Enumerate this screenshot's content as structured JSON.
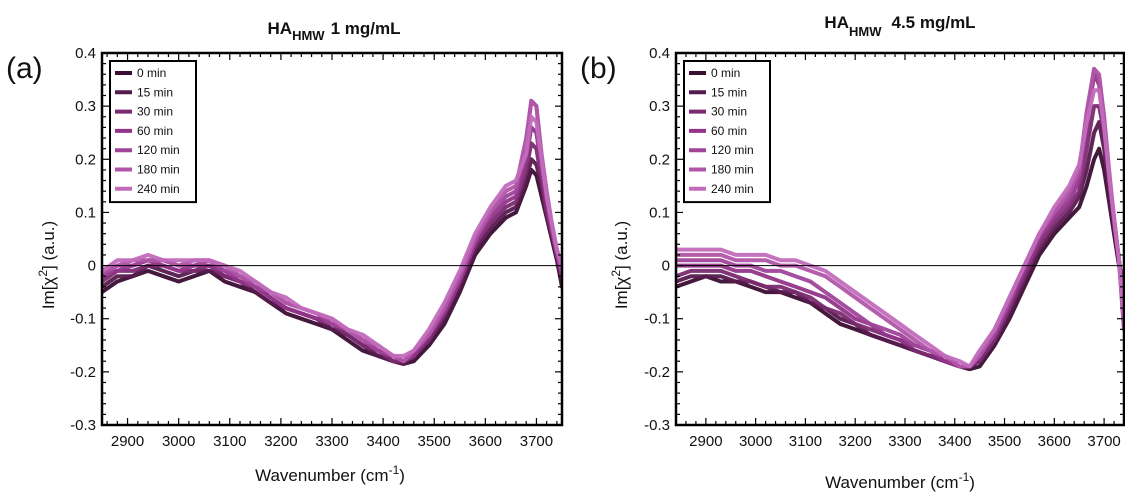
{
  "chart_data": [
    {
      "type": "line",
      "panel_label": "(a)",
      "title": {
        "main": "HA",
        "sub": "HMW",
        "rest": "1 mg/mL"
      },
      "xlabel": {
        "main": "Wavenumber (cm",
        "sup": "-1",
        "end": ")"
      },
      "ylabel": {
        "main": "Im[χ",
        "sup": "2",
        "end": "] (a.u.)"
      },
      "xlim": [
        2850,
        3750
      ],
      "ylim": [
        -0.3,
        0.4
      ],
      "xticks": [
        2900,
        3000,
        3100,
        3200,
        3300,
        3400,
        3500,
        3600,
        3700
      ],
      "yticks": [
        "-0.3",
        "-0.2",
        "-0.1",
        "0",
        "0.1",
        "0.2",
        "0.3",
        "0.4"
      ],
      "legend_position": "top-left",
      "zero_line": true,
      "x": [
        2850,
        2880,
        2910,
        2940,
        2970,
        3000,
        3030,
        3060,
        3090,
        3120,
        3150,
        3180,
        3210,
        3240,
        3270,
        3300,
        3330,
        3360,
        3390,
        3420,
        3440,
        3460,
        3490,
        3520,
        3550,
        3580,
        3610,
        3640,
        3660,
        3680,
        3690,
        3700,
        3710,
        3720,
        3730,
        3740,
        3750
      ],
      "series": [
        {
          "name": "0 min",
          "color": "#3b0d33",
          "values": [
            -0.05,
            -0.03,
            -0.02,
            -0.01,
            -0.02,
            -0.03,
            -0.02,
            -0.01,
            -0.03,
            -0.04,
            -0.05,
            -0.07,
            -0.09,
            -0.1,
            -0.11,
            -0.12,
            -0.14,
            -0.16,
            -0.17,
            -0.18,
            -0.185,
            -0.18,
            -0.15,
            -0.11,
            -0.05,
            0.02,
            0.06,
            0.09,
            0.1,
            0.15,
            0.18,
            0.17,
            0.13,
            0.09,
            0.05,
            0.01,
            -0.04
          ]
        },
        {
          "name": "15 min",
          "color": "#571a4e",
          "values": [
            -0.04,
            -0.02,
            -0.02,
            0.0,
            -0.01,
            -0.02,
            -0.01,
            -0.01,
            -0.02,
            -0.03,
            -0.05,
            -0.07,
            -0.08,
            -0.09,
            -0.1,
            -0.12,
            -0.13,
            -0.15,
            -0.17,
            -0.18,
            -0.185,
            -0.17,
            -0.14,
            -0.1,
            -0.04,
            0.03,
            0.07,
            0.1,
            0.11,
            0.16,
            0.2,
            0.19,
            0.15,
            0.1,
            0.06,
            0.02,
            -0.03
          ]
        },
        {
          "name": "30 min",
          "color": "#7b2a70",
          "values": [
            -0.03,
            -0.01,
            -0.01,
            0.0,
            0.0,
            -0.01,
            -0.01,
            0.0,
            -0.02,
            -0.03,
            -0.04,
            -0.06,
            -0.08,
            -0.09,
            -0.1,
            -0.11,
            -0.13,
            -0.15,
            -0.16,
            -0.18,
            -0.18,
            -0.17,
            -0.14,
            -0.09,
            -0.03,
            0.04,
            0.08,
            0.11,
            0.12,
            0.18,
            0.23,
            0.22,
            0.16,
            0.1,
            0.06,
            0.02,
            -0.02
          ]
        },
        {
          "name": "60 min",
          "color": "#92358a",
          "values": [
            -0.02,
            -0.01,
            0.0,
            0.01,
            0.0,
            -0.01,
            0.0,
            0.0,
            -0.01,
            -0.03,
            -0.04,
            -0.06,
            -0.08,
            -0.09,
            -0.1,
            -0.11,
            -0.12,
            -0.14,
            -0.16,
            -0.17,
            -0.18,
            -0.17,
            -0.13,
            -0.09,
            -0.03,
            0.04,
            0.09,
            0.12,
            0.13,
            0.2,
            0.26,
            0.25,
            0.18,
            0.12,
            0.07,
            0.02,
            -0.02
          ]
        },
        {
          "name": "120 min",
          "color": "#a0449a",
          "values": [
            -0.02,
            0.0,
            0.0,
            0.01,
            0.01,
            0.0,
            0.0,
            0.01,
            -0.01,
            -0.02,
            -0.04,
            -0.05,
            -0.07,
            -0.08,
            -0.09,
            -0.11,
            -0.12,
            -0.14,
            -0.16,
            -0.17,
            -0.18,
            -0.16,
            -0.13,
            -0.08,
            -0.02,
            0.05,
            0.1,
            0.13,
            0.14,
            0.23,
            0.31,
            0.3,
            0.2,
            0.13,
            0.07,
            0.03,
            -0.01
          ]
        },
        {
          "name": "180 min",
          "color": "#b055a8",
          "values": [
            -0.01,
            0.0,
            0.01,
            0.01,
            0.01,
            0.0,
            0.01,
            0.01,
            0.0,
            -0.02,
            -0.03,
            -0.05,
            -0.07,
            -0.08,
            -0.09,
            -0.1,
            -0.12,
            -0.14,
            -0.15,
            -0.17,
            -0.18,
            -0.16,
            -0.13,
            -0.08,
            -0.02,
            0.05,
            0.1,
            0.14,
            0.15,
            0.24,
            0.31,
            0.3,
            0.21,
            0.14,
            0.08,
            0.03,
            -0.01
          ]
        },
        {
          "name": "240 min",
          "color": "#c26bbc",
          "values": [
            -0.01,
            0.01,
            0.01,
            0.02,
            0.01,
            0.01,
            0.01,
            0.01,
            0.0,
            -0.01,
            -0.03,
            -0.05,
            -0.06,
            -0.08,
            -0.09,
            -0.1,
            -0.12,
            -0.13,
            -0.15,
            -0.17,
            -0.17,
            -0.16,
            -0.12,
            -0.07,
            -0.01,
            0.06,
            0.11,
            0.15,
            0.16,
            0.21,
            0.28,
            0.27,
            0.2,
            0.13,
            0.08,
            0.03,
            0.0
          ]
        }
      ]
    },
    {
      "type": "line",
      "panel_label": "(b)",
      "title": {
        "main": "HA",
        "sub": "HMW",
        "rest": "4.5 mg/mL"
      },
      "xlabel": {
        "main": "Wavenumber (cm",
        "sup": "-1",
        "end": ")"
      },
      "ylabel": {
        "main": "Im[χ",
        "sup": "2",
        "end": "] (a.u.)"
      },
      "xlim": [
        2840,
        3740
      ],
      "ylim": [
        -0.3,
        0.4
      ],
      "xticks": [
        2900,
        3000,
        3100,
        3200,
        3300,
        3400,
        3500,
        3600,
        3700
      ],
      "yticks": [
        "-0.3",
        "-0.2",
        "-0.1",
        "0",
        "0.1",
        "0.2",
        "0.3",
        "0.4"
      ],
      "legend_position": "top-left",
      "zero_line": true,
      "x": [
        2840,
        2870,
        2900,
        2930,
        2960,
        2990,
        3020,
        3050,
        3080,
        3110,
        3140,
        3170,
        3200,
        3230,
        3260,
        3290,
        3320,
        3350,
        3380,
        3410,
        3430,
        3450,
        3480,
        3510,
        3540,
        3570,
        3600,
        3630,
        3650,
        3665,
        3680,
        3690,
        3700,
        3710,
        3720,
        3730,
        3740
      ],
      "series": [
        {
          "name": "0 min",
          "color": "#3b0d33",
          "values": [
            -0.04,
            -0.03,
            -0.02,
            -0.03,
            -0.03,
            -0.04,
            -0.05,
            -0.05,
            -0.06,
            -0.07,
            -0.09,
            -0.11,
            -0.12,
            -0.13,
            -0.14,
            -0.15,
            -0.16,
            -0.17,
            -0.18,
            -0.19,
            -0.195,
            -0.19,
            -0.15,
            -0.1,
            -0.04,
            0.02,
            0.06,
            0.09,
            0.11,
            0.15,
            0.2,
            0.22,
            0.18,
            0.12,
            0.06,
            0.0,
            -0.05
          ]
        },
        {
          "name": "15 min",
          "color": "#571a4e",
          "values": [
            -0.03,
            -0.02,
            -0.02,
            -0.02,
            -0.03,
            -0.03,
            -0.04,
            -0.05,
            -0.05,
            -0.07,
            -0.08,
            -0.1,
            -0.11,
            -0.13,
            -0.14,
            -0.15,
            -0.16,
            -0.17,
            -0.18,
            -0.19,
            -0.19,
            -0.18,
            -0.14,
            -0.09,
            -0.03,
            0.03,
            0.07,
            0.1,
            0.13,
            0.18,
            0.25,
            0.27,
            0.22,
            0.14,
            0.07,
            0.01,
            -0.05
          ]
        },
        {
          "name": "30 min",
          "color": "#7b2a70",
          "values": [
            -0.02,
            -0.01,
            -0.01,
            -0.01,
            -0.02,
            -0.03,
            -0.04,
            -0.04,
            -0.05,
            -0.06,
            -0.08,
            -0.09,
            -0.11,
            -0.12,
            -0.13,
            -0.14,
            -0.16,
            -0.17,
            -0.18,
            -0.19,
            -0.19,
            -0.18,
            -0.14,
            -0.08,
            -0.02,
            0.04,
            0.08,
            0.11,
            0.14,
            0.22,
            0.3,
            0.3,
            0.25,
            0.16,
            0.08,
            0.01,
            -0.08
          ]
        },
        {
          "name": "60 min",
          "color": "#92358a",
          "values": [
            0.0,
            0.0,
            0.0,
            0.0,
            -0.01,
            -0.01,
            -0.02,
            -0.03,
            -0.04,
            -0.05,
            -0.06,
            -0.08,
            -0.1,
            -0.11,
            -0.13,
            -0.14,
            -0.15,
            -0.16,
            -0.18,
            -0.19,
            -0.19,
            -0.17,
            -0.13,
            -0.07,
            -0.01,
            0.05,
            0.09,
            0.12,
            0.16,
            0.26,
            0.36,
            0.34,
            0.27,
            0.17,
            0.09,
            0.01,
            -0.11
          ]
        },
        {
          "name": "120 min",
          "color": "#a0449a",
          "values": [
            0.01,
            0.01,
            0.01,
            0.01,
            0.0,
            0.0,
            -0.01,
            -0.01,
            -0.02,
            -0.03,
            -0.05,
            -0.07,
            -0.09,
            -0.11,
            -0.12,
            -0.13,
            -0.15,
            -0.16,
            -0.17,
            -0.19,
            -0.19,
            -0.17,
            -0.13,
            -0.07,
            0.0,
            0.06,
            0.1,
            0.13,
            0.17,
            0.28,
            0.37,
            0.35,
            0.28,
            0.17,
            0.09,
            0.01,
            -0.12
          ]
        },
        {
          "name": "180 min",
          "color": "#b055a8",
          "values": [
            0.02,
            0.02,
            0.02,
            0.02,
            0.01,
            0.01,
            0.01,
            0.0,
            0.0,
            -0.01,
            -0.02,
            -0.04,
            -0.06,
            -0.08,
            -0.1,
            -0.12,
            -0.14,
            -0.16,
            -0.17,
            -0.19,
            -0.19,
            -0.17,
            -0.12,
            -0.06,
            0.0,
            0.06,
            0.1,
            0.14,
            0.18,
            0.29,
            0.37,
            0.36,
            0.28,
            0.18,
            0.09,
            0.01,
            -0.12
          ]
        },
        {
          "name": "240 min",
          "color": "#c26bbc",
          "values": [
            0.03,
            0.03,
            0.03,
            0.03,
            0.02,
            0.02,
            0.02,
            0.01,
            0.01,
            0.0,
            -0.01,
            -0.03,
            -0.05,
            -0.07,
            -0.09,
            -0.11,
            -0.13,
            -0.15,
            -0.17,
            -0.18,
            -0.19,
            -0.16,
            -0.12,
            -0.06,
            0.0,
            0.06,
            0.11,
            0.15,
            0.19,
            0.27,
            0.33,
            0.33,
            0.26,
            0.17,
            0.09,
            0.01,
            -0.1
          ]
        }
      ]
    }
  ]
}
